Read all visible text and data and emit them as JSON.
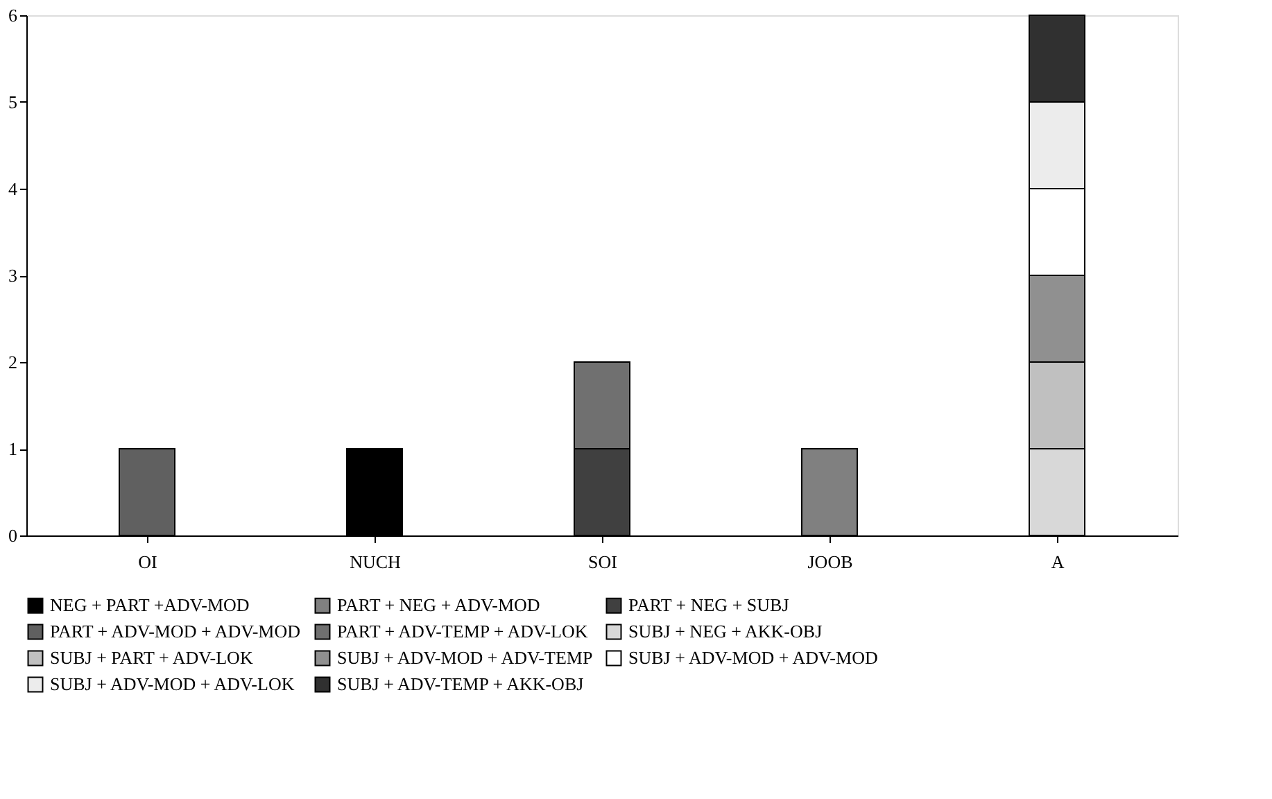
{
  "chart_data": {
    "type": "bar",
    "stacked": true,
    "categories": [
      "OI",
      "NUCH",
      "SOI",
      "JOOB",
      "A"
    ],
    "ylim": [
      0,
      6
    ],
    "yticks": [
      0,
      1,
      2,
      3,
      4,
      5,
      6
    ],
    "grid": false,
    "legend": "bottom",
    "series": [
      {
        "name": "NEG + PART +ADV-MOD",
        "color": "#000000",
        "values": [
          null,
          1,
          null,
          null,
          null
        ]
      },
      {
        "name": "PART + NEG + ADV-MOD",
        "color": "#808080",
        "values": [
          null,
          null,
          null,
          1,
          null
        ]
      },
      {
        "name": "PART + NEG + SUBJ",
        "color": "#404040",
        "values": [
          null,
          null,
          1,
          null,
          null
        ]
      },
      {
        "name": "PART + ADV-MOD + ADV-MOD",
        "color": "#606060",
        "values": [
          1,
          null,
          null,
          null,
          null
        ]
      },
      {
        "name": "PART + ADV-TEMP + ADV-LOK",
        "color": "#707070",
        "values": [
          null,
          null,
          1,
          null,
          null
        ]
      },
      {
        "name": "SUBJ + NEG + AKK-OBJ",
        "color": "#d8d8d8",
        "values": [
          null,
          null,
          null,
          null,
          1
        ]
      },
      {
        "name": "SUBJ + PART + ADV-LOK",
        "color": "#c0c0c0",
        "values": [
          null,
          null,
          null,
          null,
          1
        ]
      },
      {
        "name": "SUBJ + ADV-MOD + ADV-TEMP",
        "color": "#909090",
        "values": [
          null,
          null,
          null,
          null,
          1
        ]
      },
      {
        "name": "SUBJ + ADV-MOD + ADV-MOD",
        "color": "#ffffff",
        "values": [
          null,
          null,
          null,
          null,
          1
        ]
      },
      {
        "name": "SUBJ + ADV-MOD + ADV-LOK",
        "color": "#ececec",
        "values": [
          null,
          null,
          null,
          null,
          1
        ]
      },
      {
        "name": "SUBJ + ADV-TEMP + AKK-OBJ",
        "color": "#303030",
        "values": [
          null,
          null,
          null,
          null,
          1
        ]
      }
    ]
  }
}
